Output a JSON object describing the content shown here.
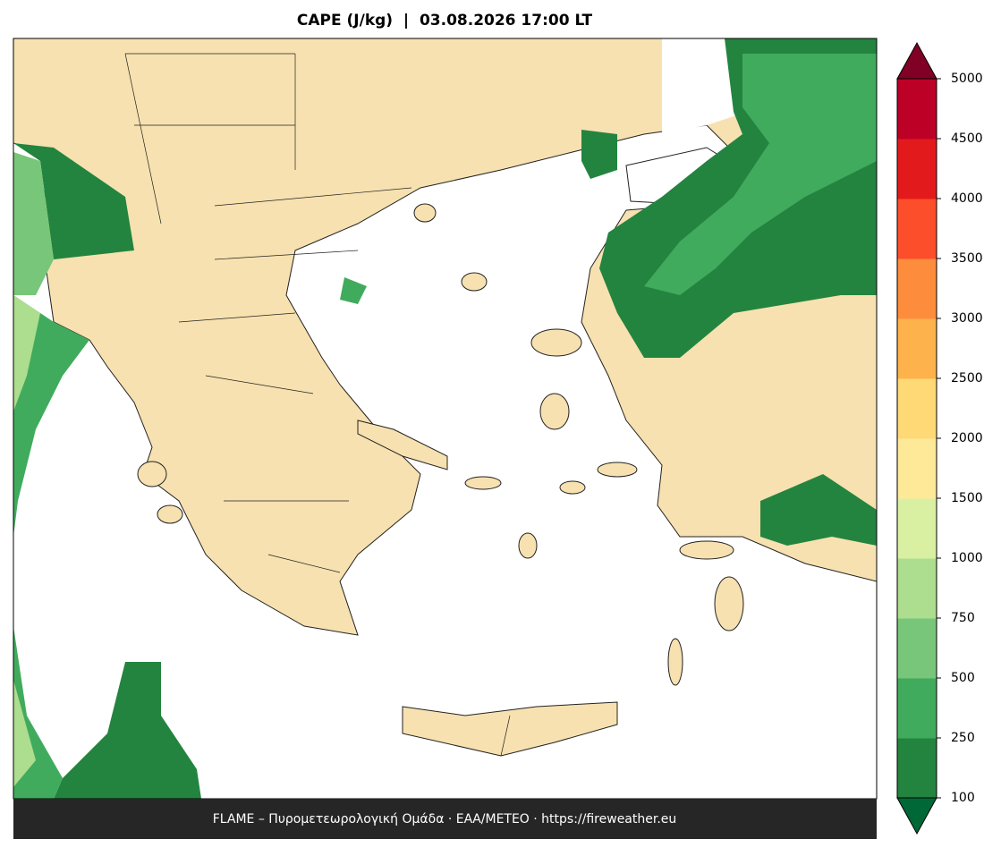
{
  "title": "CAPE (J/kg)  |  03.08.2026 17:00 LT",
  "footer": "FLAME – Πυρομετεωρολογική Ομάδα · ΕΑΑ/METEO · https://fireweather.eu",
  "colorbar": {
    "levels": [
      100,
      250,
      500,
      750,
      1000,
      1500,
      2000,
      2500,
      3000,
      3500,
      4000,
      4500,
      5000
    ],
    "colors": [
      "#23843f",
      "#41ab5d",
      "#78c679",
      "#addd8e",
      "#d9f0a3",
      "#fee999",
      "#fed976",
      "#feb24c",
      "#fd8d3c",
      "#fc4e2a",
      "#e31a1c",
      "#bd0026"
    ],
    "under_color": "#006837",
    "over_color": "#800026"
  }
}
